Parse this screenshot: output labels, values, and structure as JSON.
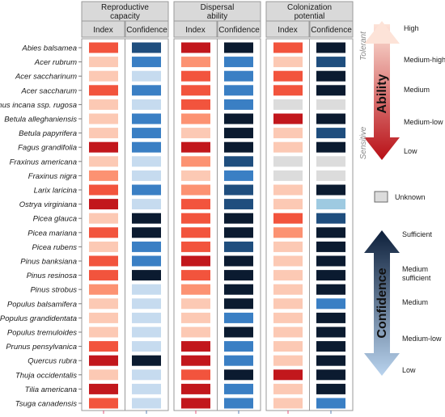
{
  "chart_data": {
    "type": "heatmap",
    "title": "",
    "species": [
      "Abies balsamea",
      "Acer rubrum",
      "Acer saccharinum",
      "Acer saccharum",
      "Alnus incana ssp. rugosa",
      "Betula alleghaniensis",
      "Betula papyrifera",
      "Fagus grandifolia",
      "Fraxinus americana",
      "Fraxinus nigra",
      "Larix laricina",
      "Ostrya virginiana",
      "Picea glauca",
      "Picea mariana",
      "Picea rubens",
      "Pinus banksiana",
      "Pinus resinosa",
      "Pinus strobus",
      "Populus balsamifera",
      "Populus grandidentata",
      "Populus tremuloides",
      "Prunus pensylvanica",
      "Quercus rubra",
      "Thuja occidentalis",
      "Tilia americana",
      "Tsuga canadensis"
    ],
    "groups": [
      {
        "name": "Reproductive capacity",
        "lines": [
          "Reproductive",
          "capacity"
        ]
      },
      {
        "name": "Dispersal ability",
        "lines": [
          "Dispersal",
          "ability"
        ]
      },
      {
        "name": "Colonization potential",
        "lines": [
          "Colonization",
          "potential"
        ]
      }
    ],
    "subcolumns": [
      "Index",
      "Confidence"
    ],
    "ability_levels": [
      "Low",
      "Medium-low",
      "Medium",
      "Medium-high",
      "High"
    ],
    "confidence_levels": [
      "Low",
      "Medium-low",
      "Medium",
      "Medium sufficient",
      "Sufficient"
    ],
    "ability_codes": "1 = Low, 2 = Medium-low, 3 = Medium, 4 = Medium-high, 5 = High, 0 = Unknown",
    "confidence_codes": "1 = Low, 2 = Medium-low, 3 = Medium, 4 = Medium sufficient, 5 = Sufficient, 0 = Unknown",
    "index": [
      [
        4,
        5,
        4
      ],
      [
        2,
        3,
        2
      ],
      [
        2,
        4,
        4
      ],
      [
        4,
        4,
        4
      ],
      [
        2,
        4,
        0
      ],
      [
        2,
        3,
        5
      ],
      [
        2,
        2,
        2
      ],
      [
        5,
        5,
        2
      ],
      [
        2,
        3,
        0
      ],
      [
        3,
        2,
        0
      ],
      [
        4,
        3,
        2
      ],
      [
        5,
        4,
        2
      ],
      [
        2,
        4,
        4
      ],
      [
        4,
        4,
        3
      ],
      [
        2,
        4,
        2
      ],
      [
        4,
        5,
        2
      ],
      [
        4,
        4,
        2
      ],
      [
        3,
        3,
        2
      ],
      [
        2,
        2,
        2
      ],
      [
        2,
        2,
        2
      ],
      [
        2,
        2,
        2
      ],
      [
        4,
        5,
        2
      ],
      [
        5,
        5,
        2
      ],
      [
        2,
        4,
        5
      ],
      [
        5,
        5,
        2
      ],
      [
        4,
        5,
        2
      ]
    ],
    "confidence": [
      [
        4,
        5,
        5
      ],
      [
        3,
        3,
        4
      ],
      [
        1,
        3,
        5
      ],
      [
        3,
        3,
        5
      ],
      [
        1,
        3,
        0
      ],
      [
        3,
        5,
        5
      ],
      [
        3,
        5,
        4
      ],
      [
        3,
        5,
        5
      ],
      [
        1,
        4,
        0
      ],
      [
        1,
        3,
        0
      ],
      [
        3,
        4,
        5
      ],
      [
        1,
        4,
        2
      ],
      [
        5,
        5,
        4
      ],
      [
        5,
        5,
        5
      ],
      [
        3,
        4,
        5
      ],
      [
        3,
        5,
        5
      ],
      [
        5,
        5,
        5
      ],
      [
        1,
        5,
        5
      ],
      [
        1,
        5,
        3
      ],
      [
        1,
        3,
        5
      ],
      [
        1,
        5,
        5
      ],
      [
        1,
        3,
        5
      ],
      [
        5,
        3,
        5
      ],
      [
        1,
        5,
        5
      ],
      [
        1,
        3,
        5
      ],
      [
        1,
        3,
        3
      ]
    ],
    "ability_colors": {
      "0": "#dcdcdc",
      "1": "#fee5d9",
      "2": "#fcc9b4",
      "3": "#fc9272",
      "4": "#f2543d",
      "5": "#c2171c",
      "6": "#7f0c12"
    },
    "confidence_colors": {
      "0": "#dcdcdc",
      "1": "#c6dbef",
      "2": "#9ecae1",
      "3": "#3a7fc4",
      "4": "#1f4e7e",
      "5": "#0b1b30"
    },
    "legend": {
      "ability_title": "Ability",
      "confidence_title": "Confidence",
      "tolerant": "Tolerant",
      "sensitive": "Sensitive",
      "unknown": "Unknown",
      "ability_top_color": "#fde3d8",
      "ability_bottom_color": "#b80f16",
      "confidence_top_color": "#0d1f3a",
      "confidence_bottom_color": "#b9d3ee"
    }
  }
}
